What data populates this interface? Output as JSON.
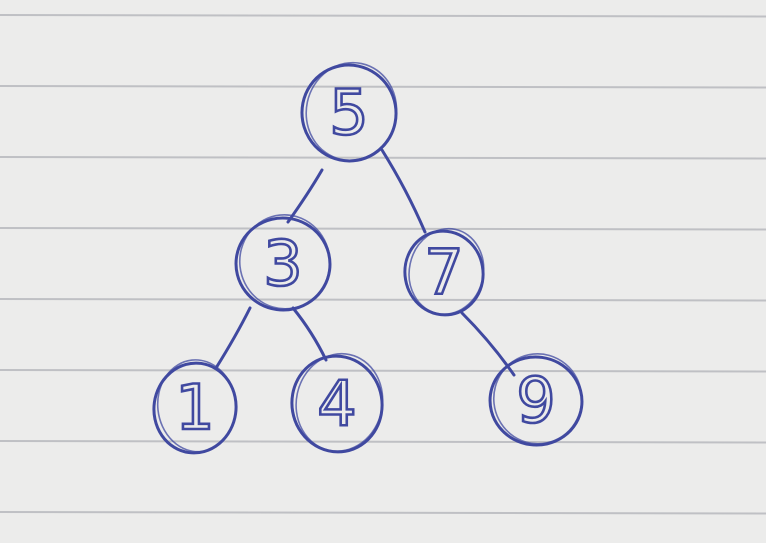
{
  "diagram": {
    "type": "binary-tree",
    "ink_color": "#4049a0",
    "paper_color": "#ececeb",
    "rule_color": "#bfc0c4",
    "nodes": [
      {
        "id": "n5",
        "label": "5"
      },
      {
        "id": "n3",
        "label": "3"
      },
      {
        "id": "n7",
        "label": "7"
      },
      {
        "id": "n1",
        "label": "1"
      },
      {
        "id": "n4",
        "label": "4"
      },
      {
        "id": "n9",
        "label": "9"
      }
    ],
    "edges": [
      {
        "from": "n5",
        "to": "n3"
      },
      {
        "from": "n5",
        "to": "n7"
      },
      {
        "from": "n3",
        "to": "n1"
      },
      {
        "from": "n3",
        "to": "n4"
      },
      {
        "from": "n7",
        "to": "n9"
      }
    ]
  }
}
